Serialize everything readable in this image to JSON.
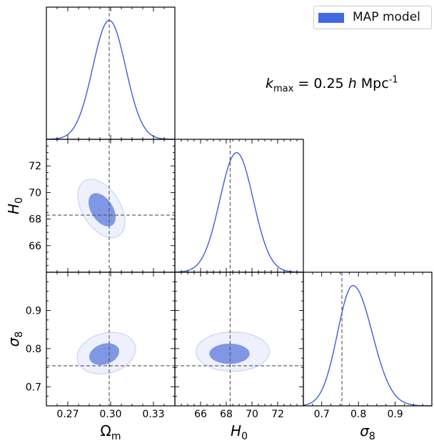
{
  "legend": {
    "label": "MAP model",
    "color": "#4169e1"
  },
  "annotation": "k_max = 0.25 h Mpc^-1",
  "chart_data": {
    "type": "corner",
    "parameters": [
      {
        "name": "Omega_m",
        "label": "Ω_m",
        "ticks": [
          0.27,
          0.3,
          0.33
        ],
        "tick_labels": [
          "0.27",
          "0.30",
          "0.33"
        ],
        "range": [
          0.255,
          0.345
        ],
        "map_value": 0.299
      },
      {
        "name": "H0",
        "label": "H_0",
        "ticks": [
          66,
          68,
          70,
          72
        ],
        "tick_labels": [
          "66",
          "68",
          "70",
          "72"
        ],
        "range": [
          64,
          74
        ],
        "map_value": 68.3
      },
      {
        "name": "sigma8",
        "label": "σ_8",
        "ticks": [
          0.7,
          0.8,
          0.9
        ],
        "tick_labels": [
          "0.7",
          "0.8",
          "0.9"
        ],
        "range": [
          0.65,
          1.0
        ],
        "map_value": 0.755
      }
    ],
    "marginals": [
      {
        "param": "Omega_m",
        "mean": 0.299,
        "sd": 0.0115
      },
      {
        "param": "H0",
        "mean": 68.8,
        "sd": 1.3
      },
      {
        "param": "sigma8",
        "mean": 0.785,
        "sd": 0.042,
        "skew_right": true
      }
    ],
    "contours_2d": [
      {
        "x": "Omega_m",
        "y": "H0",
        "inner": {
          "center": [
            0.294,
            68.7
          ],
          "sd": [
            0.0095,
            1.25
          ],
          "corr": -0.45
        },
        "outer": {
          "center": [
            0.2935,
            68.8
          ],
          "sd": [
            0.0165,
            2.2
          ],
          "corr": -0.45
        }
      },
      {
        "x": "Omega_m",
        "y": "sigma8",
        "inner": {
          "center": [
            0.2955,
            0.7855
          ],
          "sd": [
            0.0105,
            0.0285
          ],
          "corr": 0.25
        },
        "outer": {
          "center": [
            0.297,
            0.788
          ],
          "sd": [
            0.0205,
            0.0545
          ],
          "corr": 0.2
        }
      },
      {
        "x": "H0",
        "y": "sigma8",
        "inner": {
          "center": [
            68.25,
            0.7865
          ],
          "sd": [
            1.57,
            0.0265
          ],
          "corr": 0.0
        },
        "outer": {
          "center": [
            68.5,
            0.792
          ],
          "sd": [
            2.86,
            0.0515
          ],
          "corr": 0.0
        }
      }
    ],
    "colors": {
      "line": "#3b5fd6",
      "inner_fill": "#8097e6",
      "outer_fill": "#eef1fb",
      "outer_stroke": "#c3cdf2",
      "map_line": "#555555"
    }
  }
}
